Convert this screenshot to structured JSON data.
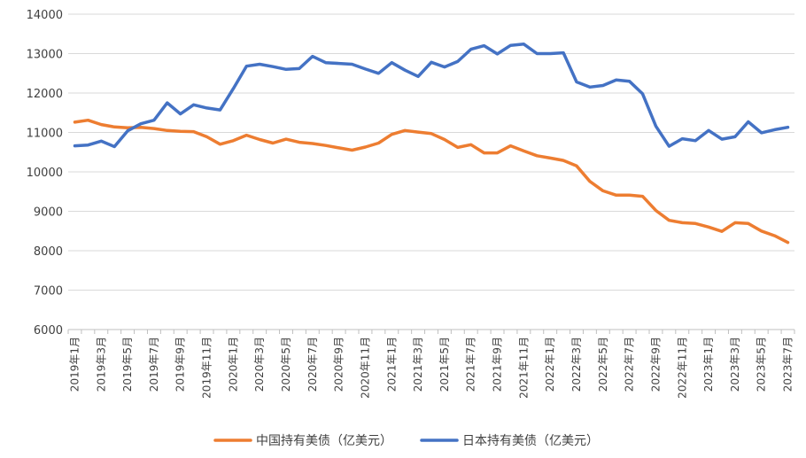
{
  "chart_data": {
    "type": "line",
    "title": "",
    "xlabel": "",
    "ylabel": "",
    "ylim": [
      6000,
      14000
    ],
    "yticks": [
      6000,
      7000,
      8000,
      9000,
      10000,
      11000,
      12000,
      13000,
      14000
    ],
    "grid": "horizontal",
    "legend_position": "bottom",
    "x": [
      "2019年1月",
      "2019年2月",
      "2019年3月",
      "2019年4月",
      "2019年5月",
      "2019年6月",
      "2019年7月",
      "2019年8月",
      "2019年9月",
      "2019年10月",
      "2019年11月",
      "2019年12月",
      "2020年1月",
      "2020年2月",
      "2020年3月",
      "2020年4月",
      "2020年5月",
      "2020年6月",
      "2020年7月",
      "2020年8月",
      "2020年9月",
      "2020年10月",
      "2020年11月",
      "2020年12月",
      "2021年1月",
      "2021年2月",
      "2021年3月",
      "2021年4月",
      "2021年5月",
      "2021年6月",
      "2021年7月",
      "2021年8月",
      "2021年9月",
      "2021年10月",
      "2021年11月",
      "2021年12月",
      "2022年1月",
      "2022年2月",
      "2022年3月",
      "2022年4月",
      "2022年5月",
      "2022年6月",
      "2022年7月",
      "2022年8月",
      "2022年9月",
      "2022年10月",
      "2022年11月",
      "2022年12月",
      "2023年1月",
      "2023年2月",
      "2023年3月",
      "2023年4月",
      "2023年5月",
      "2023年6月",
      "2023年7月"
    ],
    "xtick_labels": [
      "2019年1月",
      "2019年3月",
      "2019年5月",
      "2019年7月",
      "2019年9月",
      "2019年11月",
      "2020年1月",
      "2020年3月",
      "2020年5月",
      "2020年7月",
      "2020年9月",
      "2020年11月",
      "2021年1月",
      "2021年3月",
      "2021年5月",
      "2021年7月",
      "2021年9月",
      "2021年11月",
      "2022年1月",
      "2022年3月",
      "2022年5月",
      "2022年7月",
      "2022年9月",
      "2022年11月",
      "2023年1月",
      "2023年3月",
      "2023年5月",
      "2023年7月"
    ],
    "series": [
      {
        "name": "中国持有美债（亿美元）",
        "color": "#ED7D31",
        "values": [
          11260,
          11310,
          11200,
          11140,
          11120,
          11130,
          11100,
          11050,
          11030,
          11020,
          10890,
          10700,
          10790,
          10930,
          10820,
          10730,
          10830,
          10750,
          10720,
          10670,
          10610,
          10550,
          10630,
          10730,
          10950,
          11050,
          11010,
          10970,
          10820,
          10620,
          10690,
          10480,
          10480,
          10660,
          10530,
          10410,
          10350,
          10290,
          10150,
          9760,
          9520,
          9410,
          9410,
          9380,
          9020,
          8770,
          8710,
          8690,
          8600,
          8490,
          8710,
          8690,
          8500,
          8380,
          8210
        ]
      },
      {
        "name": "日本持有美债（亿美元）",
        "color": "#4472C4",
        "values": [
          10660,
          10680,
          10780,
          10640,
          11040,
          11220,
          11310,
          11750,
          11470,
          11700,
          11620,
          11570,
          12110,
          12680,
          12730,
          12670,
          12600,
          12620,
          12930,
          12770,
          12750,
          12730,
          12610,
          12500,
          12770,
          12580,
          12420,
          12780,
          12660,
          12800,
          13110,
          13200,
          12990,
          13210,
          13240,
          13000,
          13000,
          13020,
          12280,
          12150,
          12190,
          12330,
          12300,
          11980,
          11160,
          10650,
          10840,
          10790,
          11050,
          10830,
          10890,
          11270,
          10990,
          11070,
          11130
        ]
      }
    ]
  }
}
